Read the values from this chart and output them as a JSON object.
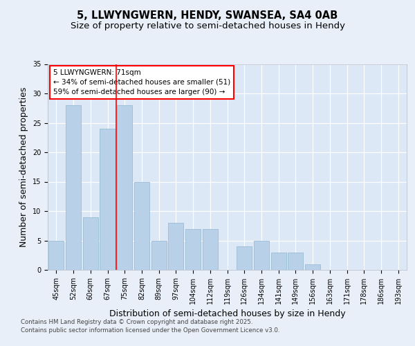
{
  "title_line1": "5, LLWYNGWERN, HENDY, SWANSEA, SA4 0AB",
  "title_line2": "Size of property relative to semi-detached houses in Hendy",
  "xlabel": "Distribution of semi-detached houses by size in Hendy",
  "ylabel": "Number of semi-detached properties",
  "categories": [
    "45sqm",
    "52sqm",
    "60sqm",
    "67sqm",
    "75sqm",
    "82sqm",
    "89sqm",
    "97sqm",
    "104sqm",
    "112sqm",
    "119sqm",
    "126sqm",
    "134sqm",
    "141sqm",
    "149sqm",
    "156sqm",
    "163sqm",
    "171sqm",
    "178sqm",
    "186sqm",
    "193sqm"
  ],
  "values": [
    5,
    28,
    9,
    24,
    28,
    15,
    5,
    8,
    7,
    7,
    0,
    4,
    5,
    3,
    3,
    1,
    0,
    0,
    0,
    0,
    0
  ],
  "bar_color": "#b8d0e8",
  "bar_edgecolor": "#9abcd6",
  "red_line_index": 3.5,
  "annotation_title": "5 LLWYNGWERN: 71sqm",
  "annotation_line2": "← 34% of semi-detached houses are smaller (51)",
  "annotation_line3": "59% of semi-detached houses are larger (90) →",
  "ylim": [
    0,
    35
  ],
  "yticks": [
    0,
    5,
    10,
    15,
    20,
    25,
    30,
    35
  ],
  "footnote_line1": "Contains HM Land Registry data © Crown copyright and database right 2025.",
  "footnote_line2": "Contains public sector information licensed under the Open Government Licence v3.0.",
  "background_color": "#e8eff8",
  "plot_background": "#dce8f5",
  "grid_color": "#ffffff",
  "title_fontsize": 10.5,
  "subtitle_fontsize": 9.5,
  "axis_label_fontsize": 9,
  "tick_fontsize": 7,
  "annot_fontsize": 7.5,
  "footnote_fontsize": 6.2
}
